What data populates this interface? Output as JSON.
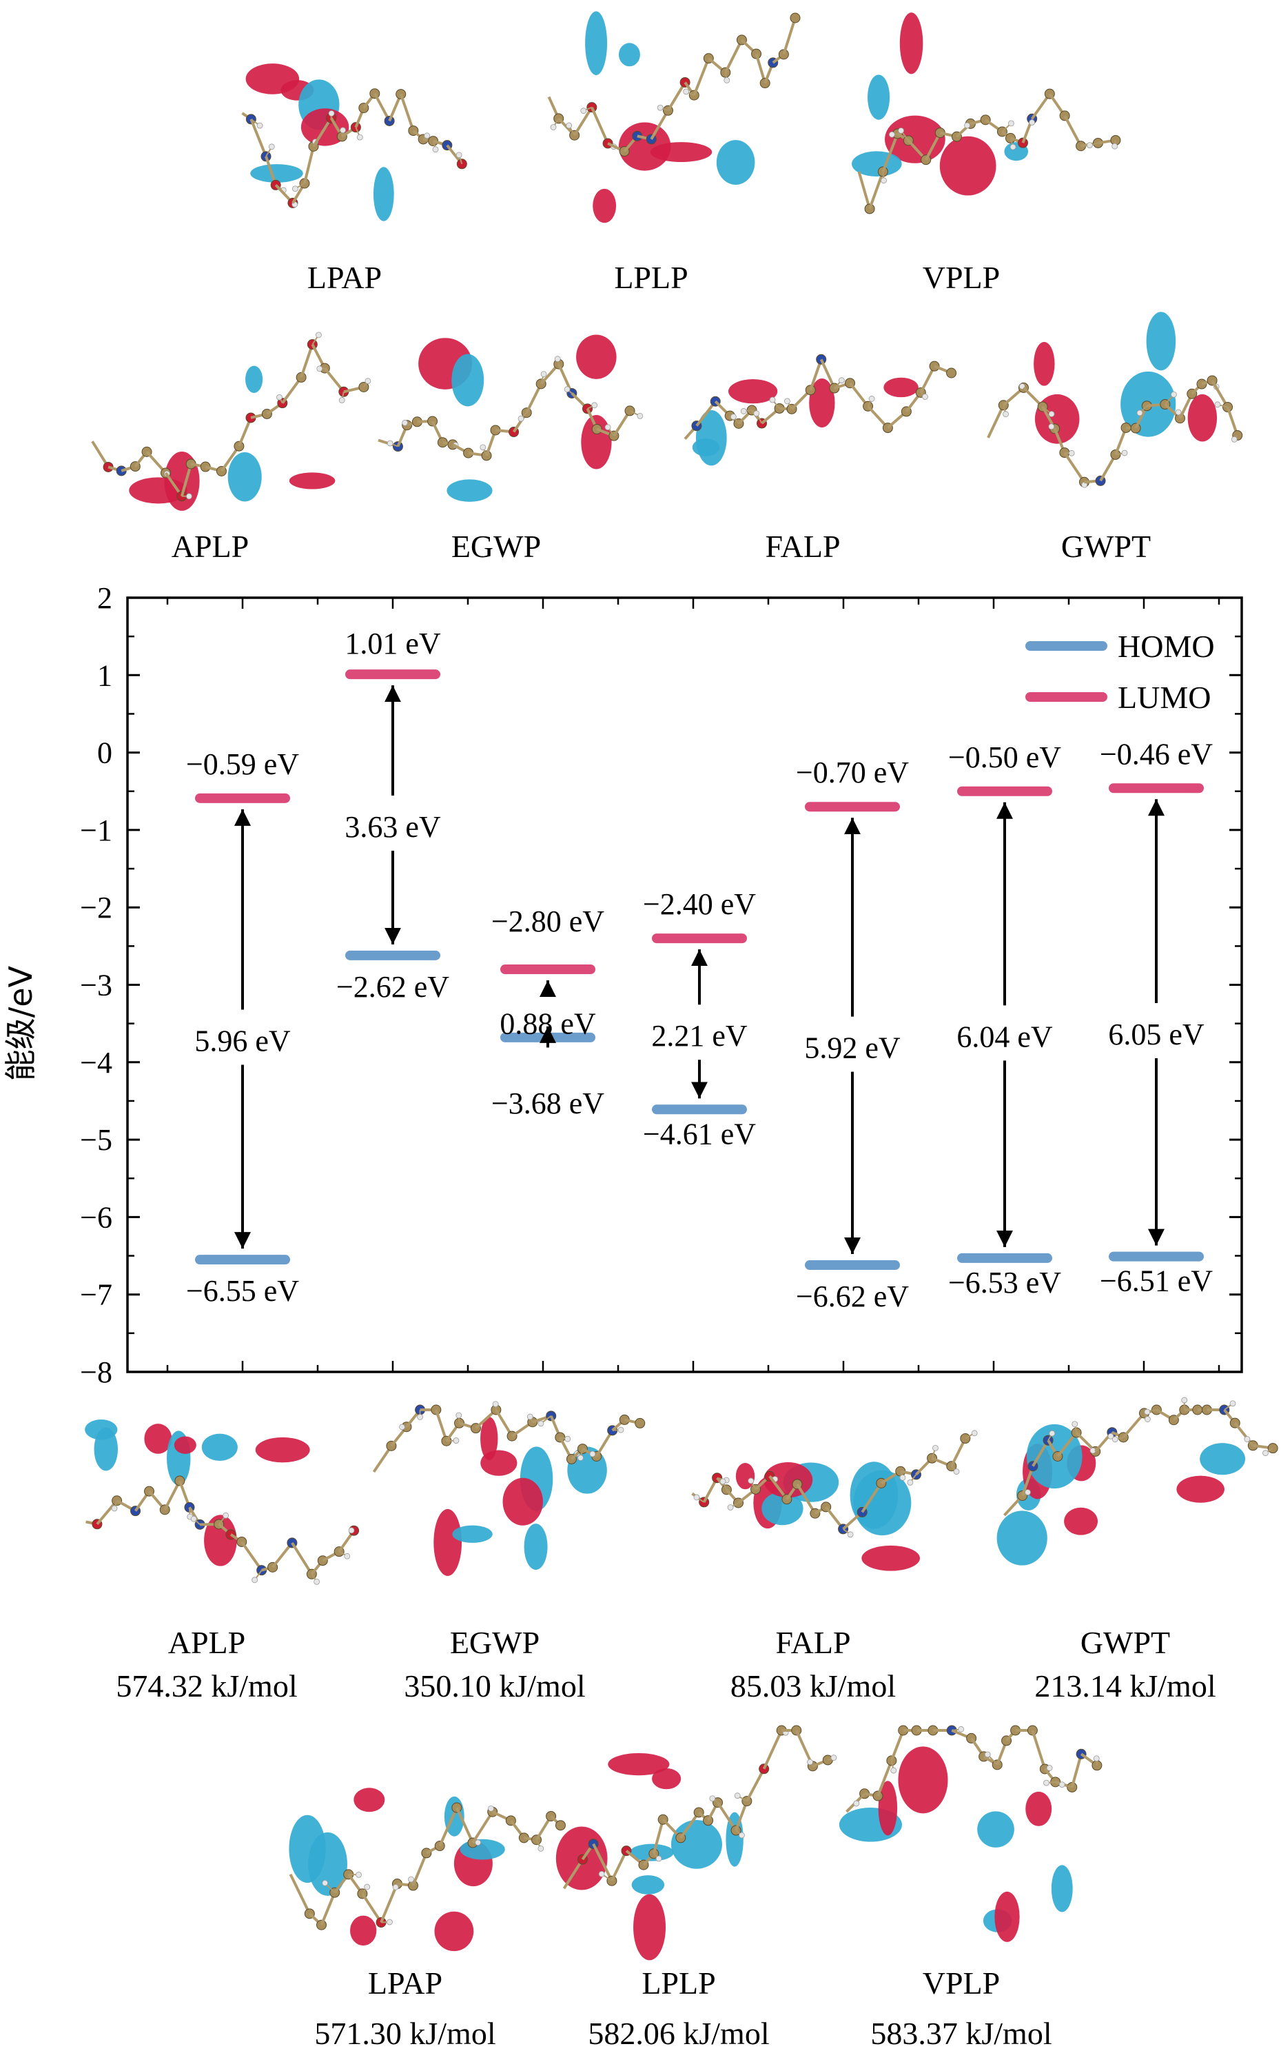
{
  "colors": {
    "homo": "#6a9ccc",
    "lumo": "#dc4a7a",
    "orbital_positive": "#d21e46",
    "orbital_negative": "#32aad2",
    "carbon": "#a88e5a",
    "nitrogen": "#2a4aa8",
    "oxygen": "#c81e32",
    "hydrogen": "#e6e6e6",
    "bond": "#b09a6a",
    "axis": "#000000"
  },
  "lumo_molecules": {
    "row1": [
      {
        "label": "LPAP"
      },
      {
        "label": "LPLP"
      },
      {
        "label": "VPLP"
      }
    ],
    "row2": [
      {
        "label": "APLP"
      },
      {
        "label": "EGWP"
      },
      {
        "label": "FALP"
      },
      {
        "label": "GWPT"
      }
    ]
  },
  "homo_molecules": {
    "row1": [
      {
        "label": "APLP",
        "energy": "574.32 kJ/mol"
      },
      {
        "label": "EGWP",
        "energy": "350.10 kJ/mol"
      },
      {
        "label": "FALP",
        "energy": "85.03 kJ/mol"
      },
      {
        "label": "GWPT",
        "energy": "213.14 kJ/mol"
      }
    ],
    "row2": [
      {
        "label": "LPAP",
        "energy": "571.30 kJ/mol"
      },
      {
        "label": "LPLP",
        "energy": "582.06 kJ/mol"
      },
      {
        "label": "VPLP",
        "energy": "583.37 kJ/mol"
      }
    ]
  },
  "chart_data": {
    "type": "energy-level diagram",
    "ylabel": "能级/eV",
    "ylim": [
      -8,
      2
    ],
    "yticks": [
      "2",
      "1",
      "0",
      "-1",
      "-2",
      "-3",
      "-4",
      "-5",
      "-6",
      "-7",
      "-8"
    ],
    "legend": {
      "position": "top-right",
      "entries": [
        {
          "name": "HOMO",
          "color": "#6a9ccc"
        },
        {
          "name": "LUMO",
          "color": "#dc4a7a"
        }
      ]
    },
    "levels": [
      {
        "x": 1,
        "lumo": -0.59,
        "homo": -6.55,
        "gap": 5.96,
        "lumo_label": "−0.59 eV",
        "homo_label": "−6.55 eV",
        "gap_label": "5.96 eV"
      },
      {
        "x": 2,
        "lumo": 1.01,
        "homo": -2.62,
        "gap": 3.63,
        "lumo_label": "1.01 eV",
        "homo_label": "−2.62 eV",
        "gap_label": "3.63 eV"
      },
      {
        "x": 3,
        "lumo": -2.8,
        "homo": -3.68,
        "gap": 0.88,
        "lumo_label": "−2.80 eV",
        "homo_label": "−3.68 eV",
        "gap_label": "0.88 eV"
      },
      {
        "x": 4,
        "lumo": -2.4,
        "homo": -4.61,
        "gap": 2.21,
        "lumo_label": "−2.40 eV",
        "homo_label": "−4.61 eV",
        "gap_label": "2.21 eV"
      },
      {
        "x": 5,
        "lumo": -0.7,
        "homo": -6.62,
        "gap": 5.92,
        "lumo_label": "−0.70 eV",
        "homo_label": "−6.62 eV",
        "gap_label": "5.92 eV"
      },
      {
        "x": 6,
        "lumo": -0.5,
        "homo": -6.53,
        "gap": 6.04,
        "lumo_label": "−0.50 eV",
        "homo_label": "−6.53 eV",
        "gap_label": "6.04 eV"
      },
      {
        "x": 7,
        "lumo": -0.46,
        "homo": -6.51,
        "gap": 6.05,
        "lumo_label": "−0.46 eV",
        "homo_label": "−6.51 eV",
        "gap_label": "6.05 eV"
      }
    ]
  }
}
